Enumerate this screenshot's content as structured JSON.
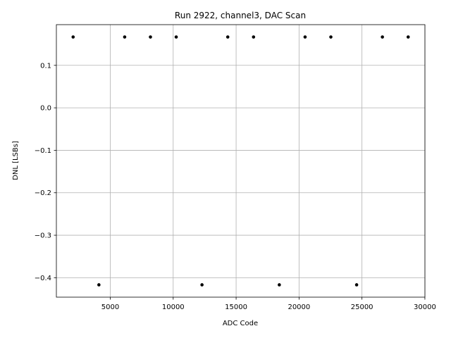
{
  "chart_data": {
    "type": "scatter",
    "title": "Run 2922, channel3, DAC Scan",
    "xlabel": "ADC Code",
    "ylabel": "DNL [LSBs]",
    "xlim": [
      717,
      30003
    ],
    "ylim": [
      -0.4458,
      0.1958
    ],
    "xticks": [
      5000,
      10000,
      15000,
      20000,
      25000,
      30000
    ],
    "xtick_labels": [
      "5000",
      "10000",
      "15000",
      "20000",
      "25000",
      "30000"
    ],
    "yticks": [
      0.1,
      0.0,
      -0.1,
      -0.2,
      -0.3,
      -0.4
    ],
    "ytick_labels": [
      "0.1",
      "0.0",
      "−0.1",
      "−0.2",
      "−0.3",
      "−0.4"
    ],
    "grid": true,
    "marker_color": "#000000",
    "grid_color": "#b0b0b0",
    "x": [
      2048,
      4096,
      6144,
      8192,
      10240,
      12288,
      14336,
      16384,
      18432,
      20480,
      22528,
      24576,
      26624,
      28672
    ],
    "y": [
      0.1667,
      -0.4167,
      0.1667,
      0.1667,
      0.1667,
      -0.4167,
      0.1667,
      0.1667,
      -0.4167,
      0.1667,
      0.1667,
      -0.4167,
      0.1667,
      0.1667
    ]
  }
}
